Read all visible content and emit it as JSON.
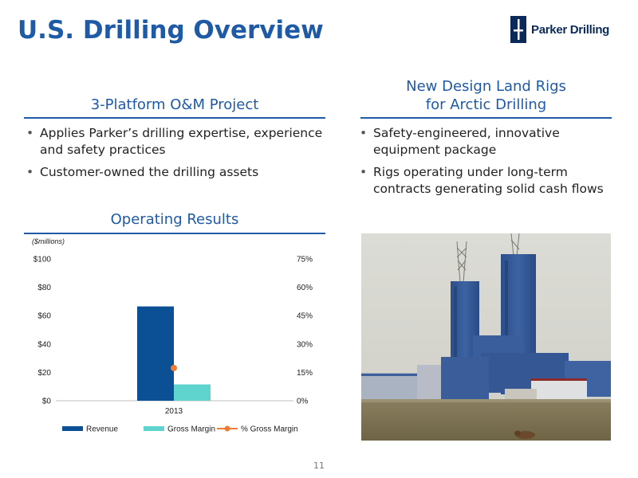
{
  "slide": {
    "title": "U.S. Drilling Overview",
    "logo_text": "Parker Drilling",
    "page_number": "11",
    "brand_color": "#1f5aa6"
  },
  "left": {
    "heading": "3-Platform O&M Project",
    "bullets": [
      "Applies Parker’s drilling expertise, experience and safety practices",
      "Customer-owned the drilling assets"
    ]
  },
  "right": {
    "heading_line1": "New Design Land Rigs",
    "heading_line2": "for Arctic Drilling",
    "bullets": [
      "Safety-engineered, innovative equipment package",
      "Rigs operating under long-term contracts generating solid cash flows"
    ]
  },
  "results": {
    "heading": "Operating Results"
  },
  "chart_data": {
    "type": "bar",
    "units_note": "($millions)",
    "categories": [
      "2013"
    ],
    "series": [
      {
        "name": "Revenue",
        "values": [
          66.5
        ],
        "color": "#0b4f94",
        "axis": "left"
      },
      {
        "name": "Gross Margin",
        "values": [
          11.5
        ],
        "color": "#5fd4cf",
        "axis": "left"
      },
      {
        "name": "% Gross Margin",
        "values": [
          17.3
        ],
        "color": "#f07c3a",
        "axis": "right",
        "mark": "line-marker"
      }
    ],
    "y_left": {
      "range": [
        0,
        100
      ],
      "ticks": [
        "$0",
        "$20",
        "$40",
        "$60",
        "$80",
        "$100"
      ]
    },
    "y_right": {
      "range": [
        0,
        75
      ],
      "ticks": [
        "0%",
        "15%",
        "30%",
        "45%",
        "60%",
        "75%"
      ]
    },
    "gridlines": false,
    "legend": "bottom"
  },
  "photo": {
    "icon": "arctic-drilling-rig-photo"
  }
}
